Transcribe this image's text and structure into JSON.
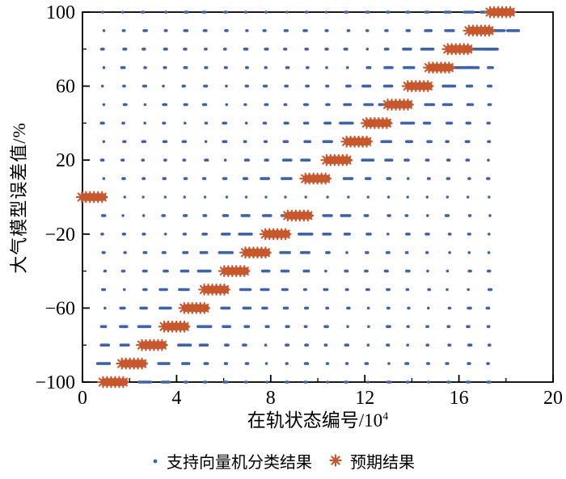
{
  "chart_data": {
    "type": "scatter",
    "title": "",
    "xlabel_main": "在轨状态编号/10",
    "xlabel_sup": "4",
    "ylabel": "大气模型误差值/%",
    "xlim": [
      0,
      20
    ],
    "ylim": [
      -100,
      100
    ],
    "x_major_ticks": [
      {
        "value": 0,
        "label": "0"
      },
      {
        "value": 4,
        "label": "4"
      },
      {
        "value": 8,
        "label": "8"
      },
      {
        "value": 12,
        "label": "12"
      },
      {
        "value": 16,
        "label": "16"
      },
      {
        "value": 20,
        "label": "20"
      }
    ],
    "x_minor_step": 2,
    "y_major_ticks": [
      {
        "value": 100,
        "label": "100"
      },
      {
        "value": 60,
        "label": "60"
      },
      {
        "value": 20,
        "label": "20"
      },
      {
        "value": -20,
        "label": "−20"
      },
      {
        "value": -60,
        "label": "−60"
      },
      {
        "value": -100,
        "label": "−100"
      }
    ],
    "y_minor_step": 20,
    "grid": false,
    "colors": {
      "svm": "#3E63A8",
      "expected": "#C7582E",
      "axis": "#000000"
    },
    "series": [
      {
        "name": "支持向量机分类结果",
        "marker": "dot",
        "type": "dot-rows",
        "row_y_values": [
          100,
          90,
          80,
          70,
          60,
          50,
          40,
          30,
          20,
          10,
          0,
          -10,
          -20,
          -30,
          -40,
          -50,
          -60,
          -70,
          -80,
          -90,
          -100
        ],
        "x_start": 0.9,
        "x_end": 17.3,
        "x_step": 0.862
      },
      {
        "name": "预期结果",
        "marker": "asterisk",
        "type": "clusters",
        "cluster_halfwidth": 0.58,
        "points": [
          {
            "y": 100,
            "x": 17.8
          },
          {
            "y": 90,
            "x": 16.9
          },
          {
            "y": 80,
            "x": 16.0
          },
          {
            "y": 70,
            "x": 15.2
          },
          {
            "y": 60,
            "x": 14.3
          },
          {
            "y": 50,
            "x": 13.45
          },
          {
            "y": 40,
            "x": 12.55
          },
          {
            "y": 30,
            "x": 11.7
          },
          {
            "y": 20,
            "x": 10.85
          },
          {
            "y": 10,
            "x": 9.95
          },
          {
            "y": 0,
            "x": 0.45
          },
          {
            "y": -10,
            "x": 9.2
          },
          {
            "y": -20,
            "x": 8.25
          },
          {
            "y": -30,
            "x": 7.4
          },
          {
            "y": -40,
            "x": 6.5
          },
          {
            "y": -50,
            "x": 5.65
          },
          {
            "y": -60,
            "x": 4.8
          },
          {
            "y": -70,
            "x": 3.95
          },
          {
            "y": -80,
            "x": 3.0
          },
          {
            "y": -90,
            "x": 2.15
          },
          {
            "y": -100,
            "x": 1.35
          }
        ]
      }
    ],
    "legend": {
      "position": "bottom-center",
      "items": [
        {
          "label": "支持向量机分类结果",
          "marker": "dot",
          "color": "#3E63A8"
        },
        {
          "label": "预期结果",
          "marker": "asterisk",
          "color": "#C7582E"
        }
      ]
    }
  }
}
